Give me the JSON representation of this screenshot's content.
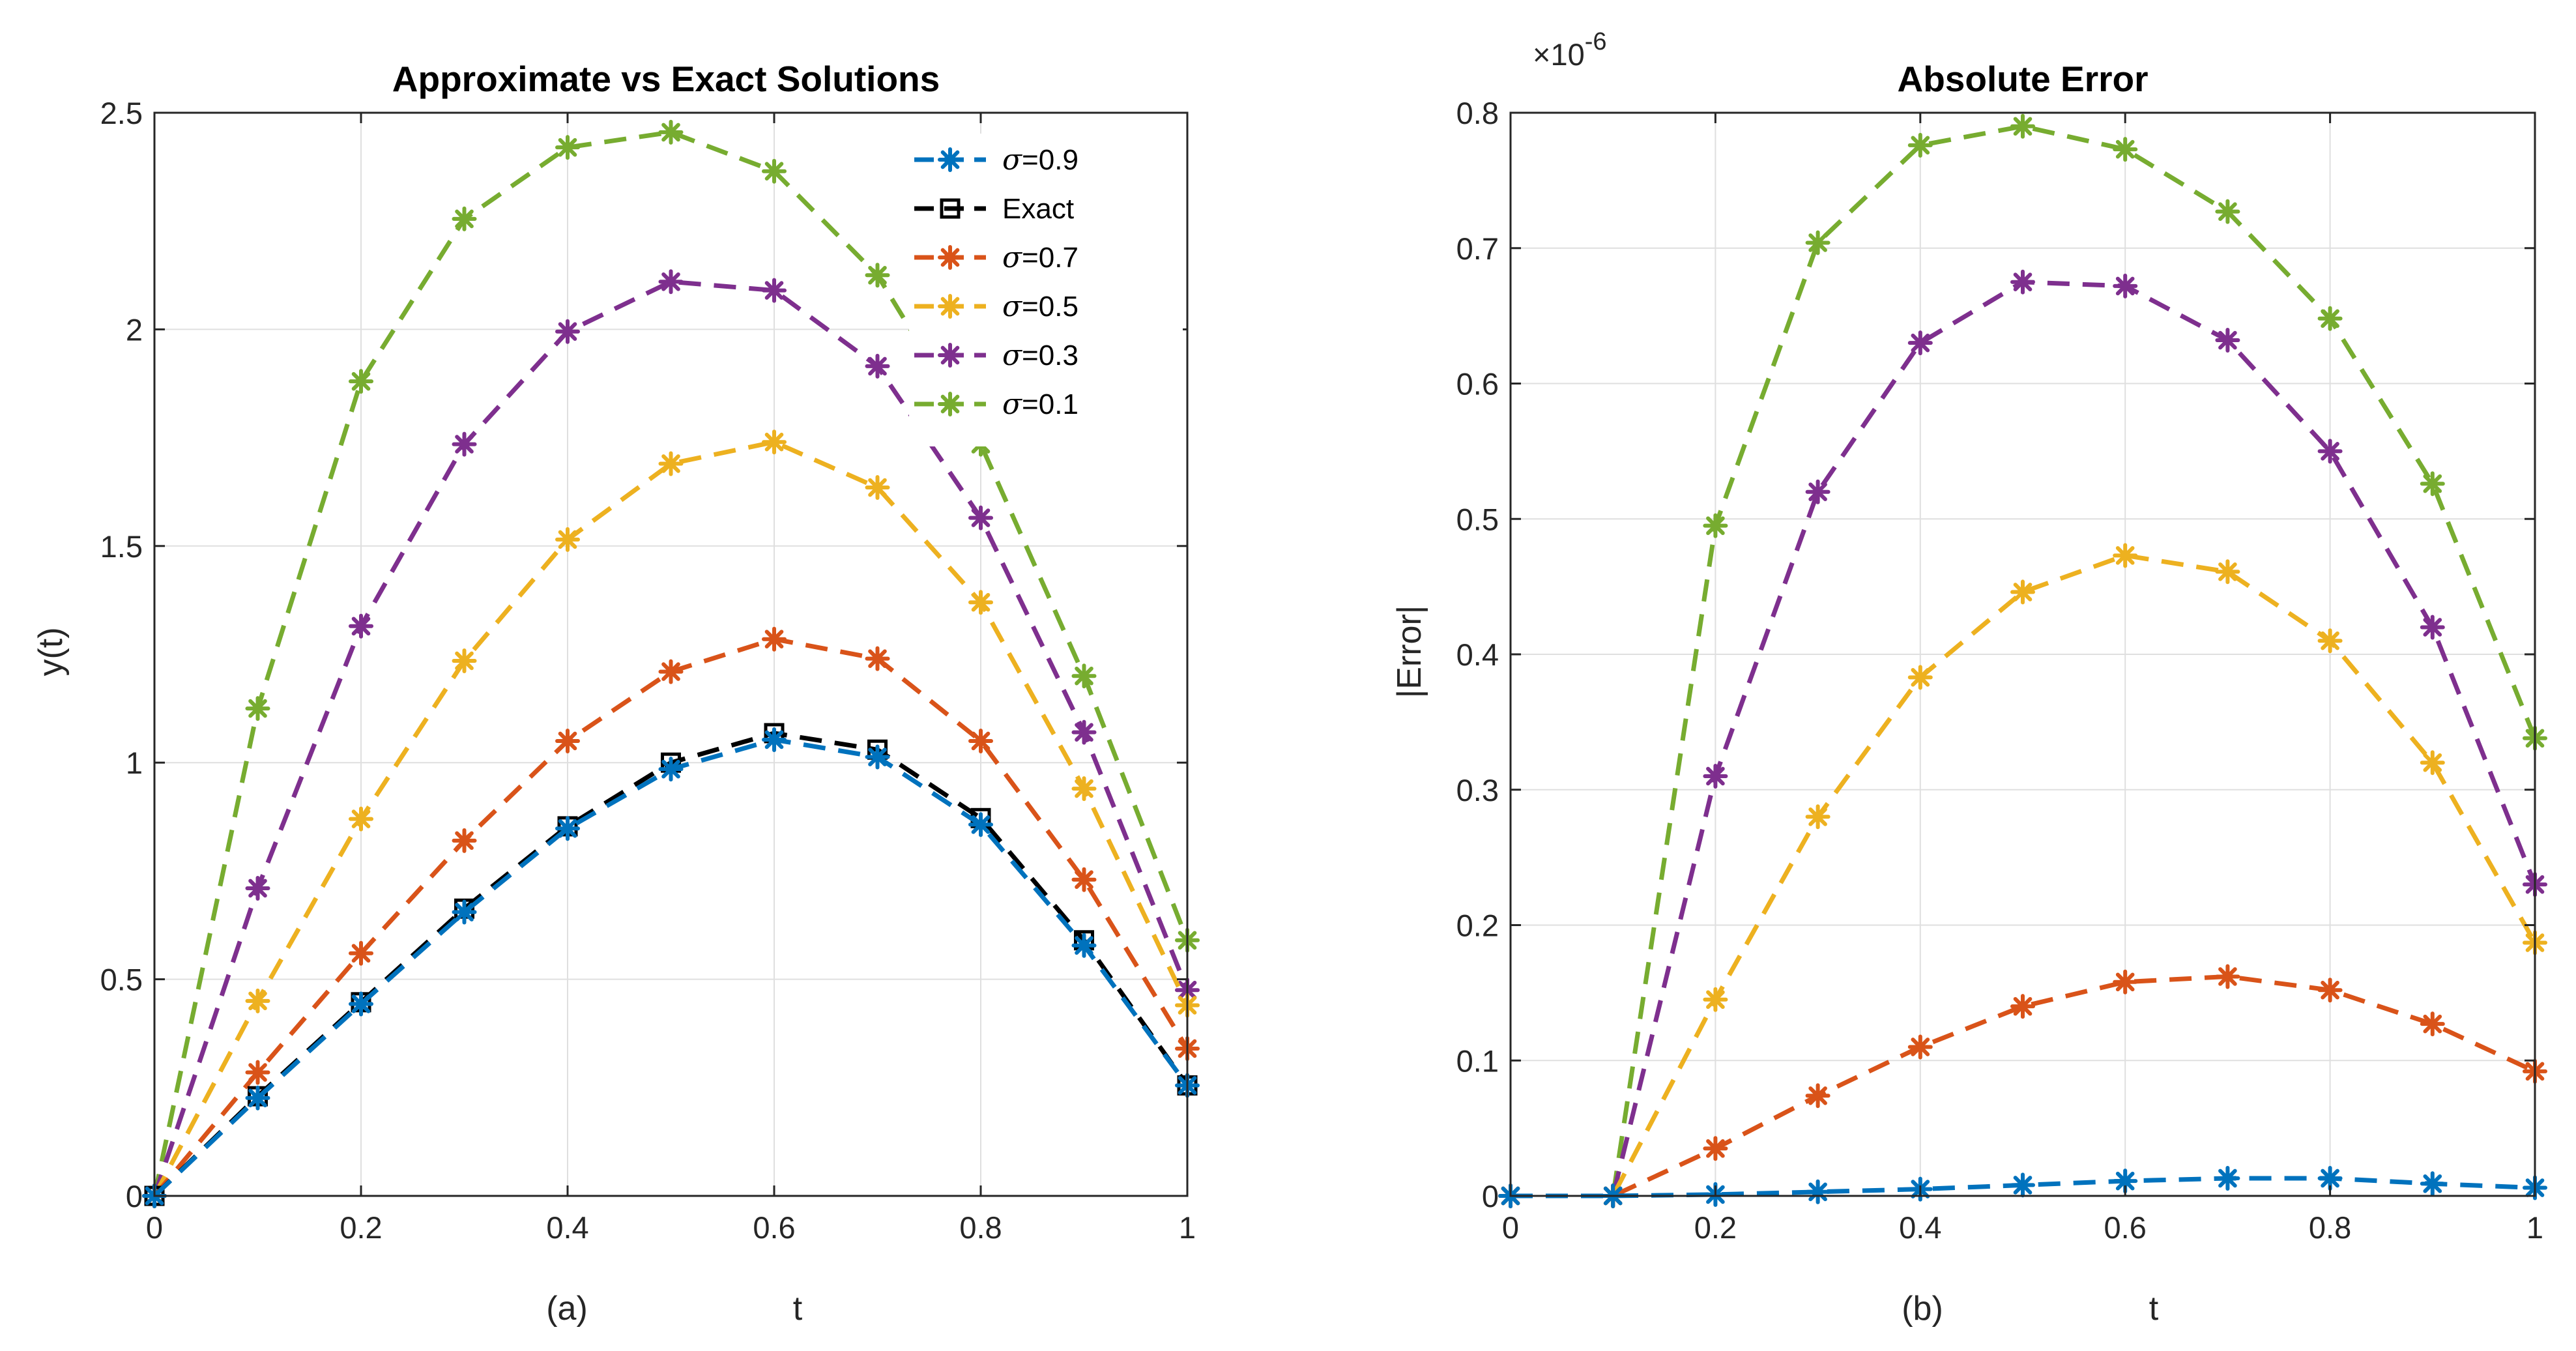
{
  "chart_data": [
    {
      "type": "line",
      "title": "Approximate vs Exact Solutions",
      "xlabel": "t",
      "ylabel": "y(t)",
      "caption": "(a)",
      "xlim": [
        0,
        1
      ],
      "ylim": [
        0,
        2.5
      ],
      "xticks": [
        0,
        0.2,
        0.4,
        0.6,
        0.8,
        1
      ],
      "xtick_labels": [
        "0",
        "0.2",
        "0.4",
        "0.6",
        "0.8",
        "1"
      ],
      "yticks": [
        0,
        0.5,
        1,
        1.5,
        2,
        2.5
      ],
      "ytick_labels": [
        "0",
        "0.5",
        "1",
        "1.5",
        "2",
        "2.5"
      ],
      "grid": true,
      "legend_position": "top-right",
      "x": [
        0,
        0.1,
        0.2,
        0.3,
        0.4,
        0.5,
        0.6,
        0.7,
        0.8,
        0.9,
        1.0
      ],
      "series": [
        {
          "name": "σ=0.9",
          "symbol": "σ",
          "rest": "=0.9",
          "color": "#0072BD",
          "marker": "asterisk",
          "values": [
            0,
            0.226,
            0.443,
            0.655,
            0.848,
            0.985,
            1.053,
            1.013,
            0.857,
            0.578,
            0.255
          ]
        },
        {
          "name": "Exact",
          "symbol": "",
          "rest": "Exact",
          "color": "#000000",
          "marker": "square",
          "values": [
            0,
            0.23,
            0.447,
            0.663,
            0.853,
            1.0,
            1.068,
            1.03,
            0.872,
            0.59,
            0.255
          ]
        },
        {
          "name": "σ=0.7",
          "symbol": "σ",
          "rest": "=0.7",
          "color": "#D95319",
          "marker": "asterisk",
          "values": [
            0,
            0.285,
            0.56,
            0.82,
            1.05,
            1.21,
            1.285,
            1.24,
            1.05,
            0.73,
            0.34
          ]
        },
        {
          "name": "σ=0.5",
          "symbol": "σ",
          "rest": "=0.5",
          "color": "#EDB120",
          "marker": "asterisk",
          "values": [
            0,
            0.45,
            0.87,
            1.235,
            1.515,
            1.69,
            1.74,
            1.635,
            1.37,
            0.94,
            0.44
          ]
        },
        {
          "name": "σ=0.3",
          "symbol": "σ",
          "rest": "=0.3",
          "color": "#7E2F8E",
          "marker": "asterisk",
          "values": [
            0,
            0.71,
            1.315,
            1.735,
            1.995,
            2.11,
            2.09,
            1.915,
            1.565,
            1.07,
            0.475
          ]
        },
        {
          "name": "σ=0.1",
          "symbol": "σ",
          "rest": "=0.1",
          "color": "#77AC30",
          "marker": "asterisk",
          "values": [
            0,
            1.125,
            1.88,
            2.255,
            2.42,
            2.455,
            2.365,
            2.125,
            1.735,
            1.2,
            0.59
          ]
        }
      ]
    },
    {
      "type": "line",
      "title": "Absolute Error",
      "xlabel": "t",
      "ylabel": "|Error|",
      "caption": "(b)",
      "y_exponent_prefix": "×10",
      "y_exponent_power": "-6",
      "xlim": [
        0,
        1
      ],
      "ylim": [
        0,
        0.8
      ],
      "xticks": [
        0,
        0.2,
        0.4,
        0.6,
        0.8,
        1
      ],
      "xtick_labels": [
        "0",
        "0.2",
        "0.4",
        "0.6",
        "0.8",
        "1"
      ],
      "yticks": [
        0,
        0.1,
        0.2,
        0.3,
        0.4,
        0.5,
        0.6,
        0.7,
        0.8
      ],
      "ytick_labels": [
        "0",
        "0.1",
        "0.2",
        "0.3",
        "0.4",
        "0.5",
        "0.6",
        "0.7",
        "0.8"
      ],
      "grid": true,
      "x": [
        0,
        0.1,
        0.2,
        0.3,
        0.4,
        0.5,
        0.6,
        0.7,
        0.8,
        0.9,
        1.0
      ],
      "series": [
        {
          "name": "σ=0.9",
          "color": "#0072BD",
          "marker": "asterisk",
          "values": [
            0,
            0,
            0.001,
            0.003,
            0.005,
            0.008,
            0.011,
            0.013,
            0.013,
            0.009,
            0.006
          ]
        },
        {
          "name": "σ=0.7",
          "color": "#D95319",
          "marker": "asterisk",
          "values": [
            0,
            0,
            0.035,
            0.074,
            0.11,
            0.14,
            0.158,
            0.162,
            0.152,
            0.127,
            0.092
          ]
        },
        {
          "name": "σ=0.5",
          "color": "#EDB120",
          "marker": "asterisk",
          "values": [
            0,
            0,
            0.145,
            0.28,
            0.383,
            0.446,
            0.473,
            0.461,
            0.41,
            0.32,
            0.187
          ]
        },
        {
          "name": "σ=0.3",
          "color": "#7E2F8E",
          "marker": "asterisk",
          "values": [
            0,
            0,
            0.31,
            0.52,
            0.63,
            0.675,
            0.672,
            0.632,
            0.55,
            0.42,
            0.23
          ]
        },
        {
          "name": "σ=0.1",
          "color": "#77AC30",
          "marker": "asterisk",
          "values": [
            0,
            0,
            0.495,
            0.704,
            0.776,
            0.79,
            0.773,
            0.727,
            0.648,
            0.526,
            0.338
          ]
        }
      ]
    }
  ]
}
